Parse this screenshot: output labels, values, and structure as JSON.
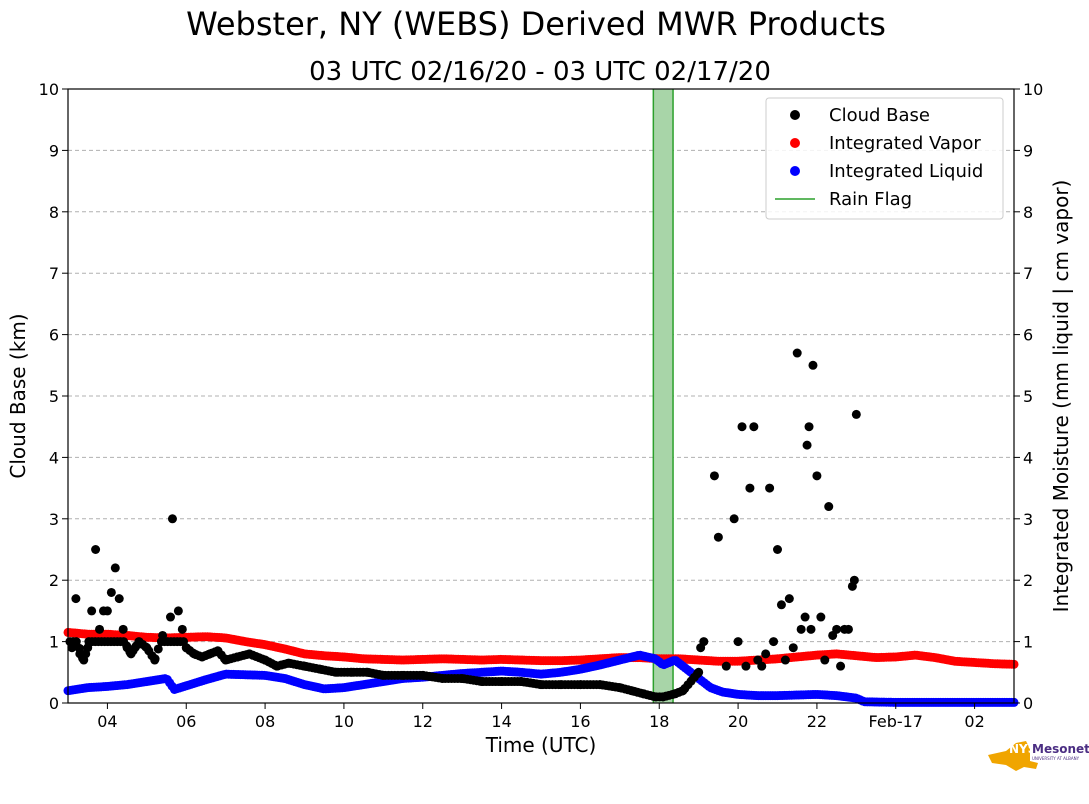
{
  "chart_data": {
    "type": "scatter",
    "title": "Webster, NY (WEBS) Derived MWR Products",
    "subtitle": "03 UTC 02/16/20 - 03 UTC 02/17/20",
    "xlabel": "Time (UTC)",
    "ylabel_left": "Cloud Base (km)",
    "ylabel_right": "Integrated Moisture (mm liquid | cm vapor)",
    "xlim_hours": [
      3,
      27
    ],
    "ylim": [
      0,
      10
    ],
    "grid": "horizontal dashed",
    "legend_position": "top-right",
    "x_ticks": [
      {
        "hour": 4,
        "label": "04"
      },
      {
        "hour": 6,
        "label": "06"
      },
      {
        "hour": 8,
        "label": "08"
      },
      {
        "hour": 10,
        "label": "10"
      },
      {
        "hour": 12,
        "label": "12"
      },
      {
        "hour": 14,
        "label": "14"
      },
      {
        "hour": 16,
        "label": "16"
      },
      {
        "hour": 18,
        "label": "18"
      },
      {
        "hour": 20,
        "label": "20"
      },
      {
        "hour": 22,
        "label": "22"
      },
      {
        "hour": 24,
        "label": "Feb-17"
      },
      {
        "hour": 26,
        "label": "02"
      }
    ],
    "y_ticks": [
      "0",
      "1",
      "2",
      "3",
      "4",
      "5",
      "6",
      "7",
      "8",
      "9",
      "10"
    ],
    "colors": {
      "cloud_base": "#000000",
      "integrated_vapor": "#ff0000",
      "integrated_liquid": "#0000ff",
      "rain_flag": "#2ca02c",
      "rain_fill": "#a8d5a8",
      "grid": "#b0b0b0"
    },
    "legend": [
      {
        "label": "Cloud Base",
        "kind": "dot",
        "color": "#000000"
      },
      {
        "label": "Integrated Vapor",
        "kind": "dot",
        "color": "#ff0000"
      },
      {
        "label": "Integrated Liquid",
        "kind": "dot",
        "color": "#0000ff"
      },
      {
        "label": "Rain Flag",
        "kind": "line",
        "color": "#2ca02c"
      }
    ],
    "rain_flag": {
      "start_hour": 17.85,
      "end_hour": 18.35
    },
    "series": [
      {
        "name": "Integrated Vapor",
        "x": [
          3.0,
          3.5,
          4.0,
          4.5,
          5.0,
          5.5,
          6.0,
          6.5,
          7.0,
          7.5,
          8.0,
          8.5,
          9.0,
          9.5,
          10.0,
          10.5,
          11.0,
          11.5,
          12.0,
          12.5,
          13.0,
          13.5,
          14.0,
          14.5,
          15.0,
          15.5,
          16.0,
          16.5,
          17.0,
          17.5,
          18.0,
          18.5,
          19.0,
          19.5,
          20.0,
          20.5,
          21.0,
          21.5,
          22.0,
          22.5,
          23.0,
          23.5,
          24.0,
          24.5,
          25.0,
          25.5,
          26.0,
          26.5,
          27.0
        ],
        "y": [
          1.15,
          1.12,
          1.12,
          1.1,
          1.07,
          1.06,
          1.07,
          1.08,
          1.06,
          1.0,
          0.95,
          0.88,
          0.8,
          0.77,
          0.75,
          0.72,
          0.71,
          0.7,
          0.71,
          0.72,
          0.71,
          0.7,
          0.71,
          0.7,
          0.69,
          0.69,
          0.7,
          0.72,
          0.74,
          0.74,
          0.72,
          0.72,
          0.7,
          0.68,
          0.68,
          0.7,
          0.72,
          0.75,
          0.78,
          0.8,
          0.77,
          0.74,
          0.75,
          0.78,
          0.74,
          0.68,
          0.66,
          0.64,
          0.63
        ]
      },
      {
        "name": "Integrated Liquid",
        "x": [
          3.0,
          3.5,
          4.0,
          4.5,
          5.0,
          5.5,
          5.7,
          6.0,
          6.5,
          7.0,
          7.5,
          8.0,
          8.5,
          9.0,
          9.5,
          10.0,
          10.5,
          11.0,
          11.5,
          12.0,
          12.5,
          13.0,
          13.5,
          14.0,
          14.5,
          15.0,
          15.5,
          16.0,
          16.5,
          17.0,
          17.5,
          17.9,
          18.1,
          18.4,
          18.7,
          19.0,
          19.3,
          19.6,
          20.0,
          20.5,
          21.0,
          21.5,
          22.0,
          22.5,
          23.0,
          23.2,
          24.0,
          25.0,
          26.0,
          27.0
        ],
        "y": [
          0.2,
          0.25,
          0.27,
          0.3,
          0.35,
          0.4,
          0.22,
          0.28,
          0.38,
          0.47,
          0.46,
          0.45,
          0.4,
          0.3,
          0.23,
          0.25,
          0.3,
          0.35,
          0.4,
          0.42,
          0.45,
          0.48,
          0.5,
          0.52,
          0.5,
          0.47,
          0.5,
          0.55,
          0.62,
          0.7,
          0.78,
          0.72,
          0.62,
          0.7,
          0.55,
          0.4,
          0.25,
          0.18,
          0.14,
          0.12,
          0.12,
          0.13,
          0.14,
          0.12,
          0.08,
          0.02,
          0.01,
          0.01,
          0.01,
          0.01
        ]
      },
      {
        "name": "Cloud Base",
        "x": [
          3.1,
          3.2,
          3.3,
          3.4,
          3.5,
          3.6,
          3.7,
          3.8,
          3.9,
          4.0,
          4.1,
          4.2,
          4.3,
          4.4,
          4.5,
          4.6,
          4.7,
          4.8,
          5.0,
          5.2,
          5.4,
          5.6,
          5.65,
          5.8,
          5.9,
          6.0,
          6.2,
          6.4,
          6.6,
          6.8,
          7.0,
          7.3,
          7.6,
          8.0,
          8.3,
          8.6,
          9.0,
          9.4,
          9.8,
          10.2,
          10.6,
          11.0,
          11.5,
          12.0,
          12.5,
          13.0,
          13.5,
          14.0,
          14.5,
          15.0,
          15.5,
          16.0,
          16.5,
          17.0,
          17.3,
          17.6,
          17.9,
          18.1,
          18.4,
          18.6,
          19.0,
          19.4,
          19.5,
          19.7,
          19.9,
          20.0,
          20.1,
          20.2,
          20.3,
          20.4,
          20.5,
          20.6,
          20.7,
          20.8,
          20.9,
          21.0,
          21.1,
          21.2,
          21.3,
          21.4,
          21.5,
          21.6,
          21.7,
          21.75,
          21.8,
          21.85,
          21.9,
          22.0,
          22.1,
          22.2,
          22.3,
          22.4,
          22.5,
          22.6,
          22.7,
          22.8,
          22.9,
          22.95,
          23.0
        ],
        "y": [
          0.9,
          1.7,
          0.8,
          0.7,
          0.9,
          1.5,
          2.5,
          1.2,
          1.5,
          1.5,
          1.8,
          2.2,
          1.7,
          1.2,
          0.9,
          0.8,
          0.9,
          1.0,
          0.9,
          0.7,
          1.1,
          1.4,
          3.0,
          1.5,
          1.2,
          0.9,
          0.8,
          0.75,
          0.8,
          0.85,
          0.7,
          0.75,
          0.8,
          0.7,
          0.6,
          0.65,
          0.6,
          0.55,
          0.5,
          0.5,
          0.5,
          0.45,
          0.45,
          0.45,
          0.4,
          0.4,
          0.35,
          0.35,
          0.35,
          0.3,
          0.3,
          0.3,
          0.3,
          0.25,
          0.2,
          0.15,
          0.1,
          0.1,
          0.15,
          0.2,
          0.5,
          3.7,
          2.7,
          0.6,
          3.0,
          1.0,
          4.5,
          0.6,
          3.5,
          4.5,
          0.7,
          0.6,
          0.8,
          3.5,
          1.0,
          2.5,
          1.6,
          0.7,
          1.7,
          0.9,
          5.7,
          1.2,
          1.4,
          4.2,
          4.5,
          1.2,
          5.5,
          3.7,
          1.4,
          0.7,
          3.2,
          1.1,
          1.2,
          0.6,
          1.2,
          1.2,
          1.9,
          2.0,
          4.7
        ]
      }
    ]
  },
  "logo": {
    "main": "NYS",
    "sub": "Mesonet",
    "small": "UNIVERSITY AT ALBANY"
  }
}
